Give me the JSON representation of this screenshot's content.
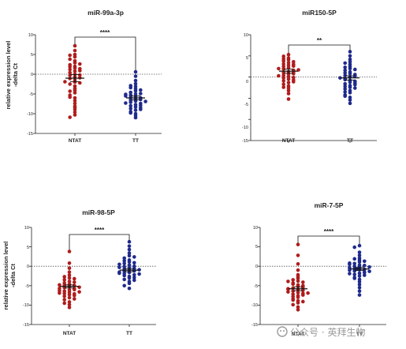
{
  "colors": {
    "ntat": "#b01c1c",
    "tt": "#1f2a8c",
    "axis": "#222222",
    "zero_line": "#555555"
  },
  "watermark": "公众号 · 英拜生物",
  "chart_data": [
    {
      "type": "scatter",
      "title": "miR-99a-3p",
      "ylabel_line1": "relative expression level",
      "ylabel_line2": "-delta Ct",
      "ylim": [
        -15,
        10
      ],
      "yticks": [
        "10",
        "5",
        "0",
        "-5",
        "-10",
        "-15"
      ],
      "categories": [
        "NTAT",
        "TT"
      ],
      "significance": "****",
      "series": [
        {
          "category": "NTAT",
          "mean": -1.0,
          "sem": 0.9,
          "values": [
            7.2,
            6.0,
            5.0,
            4.4,
            3.8,
            3.4,
            2.9,
            2.4,
            2.0,
            1.6,
            1.2,
            0.8,
            0.4,
            0.0,
            -0.3,
            -0.7,
            -1.1,
            -1.5,
            -2.0,
            -2.5,
            -3.0,
            -3.6,
            -4.1,
            -4.7,
            -5.3,
            -6.0,
            -6.7,
            -7.4,
            -8.1,
            -8.9,
            -9.6,
            -10.3,
            -10.9,
            1.9,
            0.9,
            -0.9,
            -2.2,
            -4.3,
            2.6,
            -1.9,
            4.8,
            -8.4,
            1.4,
            -0.2,
            -5.8
          ]
        },
        {
          "category": "TT",
          "mean": -6.0,
          "sem": 0.5,
          "values": [
            0.6,
            -0.5,
            -1.6,
            -2.4,
            -3.1,
            -3.7,
            -4.2,
            -4.6,
            -5.0,
            -5.3,
            -5.6,
            -5.9,
            -6.2,
            -6.5,
            -6.8,
            -7.1,
            -7.4,
            -7.7,
            -8.0,
            -8.3,
            -8.7,
            -9.1,
            -9.5,
            -10.0,
            -10.5,
            -11.0,
            -3.4,
            -4.9,
            -6.0,
            -7.3,
            -8.9,
            -2.9,
            -5.5,
            -6.9,
            -9.8,
            -4.0,
            -6.4,
            -7.9,
            -5.1,
            -8.5
          ]
        }
      ]
    },
    {
      "type": "scatter",
      "title": "miR150-5P",
      "ylim": [
        -15,
        10
      ],
      "yticks": [
        "10",
        "5",
        "0",
        "-5",
        "-10",
        "-15"
      ],
      "categories": [
        "NTAT",
        "TT"
      ],
      "significance": "**",
      "series": [
        {
          "category": "NTAT",
          "mean": 1.4,
          "sem": 0.5,
          "values": [
            5.3,
            4.9,
            4.5,
            4.1,
            3.8,
            3.4,
            3.1,
            2.8,
            2.5,
            2.2,
            1.9,
            1.6,
            1.3,
            1.0,
            0.7,
            0.4,
            0.1,
            -0.2,
            -0.5,
            -0.9,
            -1.3,
            -1.7,
            -2.1,
            -2.6,
            -3.2,
            -3.9,
            -5.2,
            2.0,
            0.8,
            -0.7,
            3.6,
            1.7,
            -1.1,
            4.3,
            2.6,
            0.3,
            -2.4,
            1.1,
            3.0,
            -0.1
          ]
        },
        {
          "category": "TT",
          "mean": -0.2,
          "sem": 0.5,
          "values": [
            6.0,
            5.0,
            4.2,
            3.6,
            3.0,
            2.5,
            2.0,
            1.6,
            1.2,
            0.8,
            0.4,
            0.0,
            -0.4,
            -0.8,
            -1.2,
            -1.6,
            -2.0,
            -2.4,
            -2.8,
            -3.2,
            -3.7,
            -4.2,
            -4.8,
            -5.4,
            -6.2,
            1.0,
            -0.6,
            -2.2,
            2.3,
            -1.4,
            0.2,
            -3.5,
            1.8,
            -0.2,
            -4.5,
            3.3,
            -1.0,
            -2.6,
            0.6,
            -1.8
          ]
        }
      ]
    },
    {
      "type": "scatter",
      "title": "miR-98-5P",
      "ylabel_line1": "relative expression level",
      "ylabel_line2": "-delta Ct",
      "ylim": [
        -15,
        10
      ],
      "yticks": [
        "10",
        "5",
        "0",
        "-5",
        "-10",
        "-15"
      ],
      "categories": [
        "NTAT",
        "TT"
      ],
      "significance": "****",
      "series": [
        {
          "category": "NTAT",
          "mean": -5.2,
          "sem": 0.4,
          "values": [
            3.8,
            0.8,
            -0.5,
            -1.5,
            -2.3,
            -3.0,
            -3.5,
            -3.9,
            -4.3,
            -4.6,
            -4.9,
            -5.2,
            -5.5,
            -5.8,
            -6.1,
            -6.4,
            -6.7,
            -7.0,
            -7.3,
            -7.7,
            -8.1,
            -8.6,
            -9.2,
            -9.9,
            -10.6,
            -4.1,
            -5.0,
            -6.0,
            -7.1,
            -3.2,
            -5.7,
            -6.9,
            -8.4,
            -4.8,
            -6.3,
            -7.5,
            -2.7,
            -5.4,
            -9.5,
            -6.6
          ]
        },
        {
          "category": "TT",
          "mean": -1.0,
          "sem": 0.4,
          "values": [
            6.3,
            5.2,
            4.3,
            3.4,
            2.7,
            2.1,
            1.6,
            1.1,
            0.7,
            0.3,
            -0.1,
            -0.4,
            -0.7,
            -1.0,
            -1.3,
            -1.6,
            -1.9,
            -2.2,
            -2.6,
            -3.0,
            -3.4,
            -3.9,
            -4.4,
            -5.0,
            -5.7,
            0.0,
            -1.2,
            -2.4,
            1.4,
            -0.6,
            -1.8,
            0.9,
            -2.9,
            -0.3,
            -1.5,
            2.4,
            -3.6,
            -0.9,
            -2.0,
            0.5
          ]
        }
      ]
    },
    {
      "type": "scatter",
      "title": "miR-7-5P",
      "ylim": [
        -15,
        10
      ],
      "yticks": [
        "10",
        "5",
        "0",
        "-5",
        "-10",
        "-15"
      ],
      "categories": [
        "NTAT",
        "TT"
      ],
      "significance": "****",
      "series": [
        {
          "category": "NTAT",
          "mean": -5.8,
          "sem": 0.5,
          "values": [
            5.6,
            2.8,
            0.6,
            -1.0,
            -2.2,
            -3.1,
            -3.8,
            -4.3,
            -4.8,
            -5.2,
            -5.6,
            -6.0,
            -6.4,
            -6.8,
            -7.2,
            -7.6,
            -8.0,
            -8.4,
            -8.9,
            -9.4,
            -9.9,
            -10.5,
            -11.2,
            -3.5,
            -4.6,
            -5.4,
            -6.2,
            -7.0,
            -7.8,
            -2.7,
            -5.0,
            -6.6,
            -8.7,
            -4.1,
            -5.8,
            -9.1,
            -6.9,
            -3.9,
            -7.4,
            -5.9
          ]
        },
        {
          "category": "TT",
          "mean": -0.7,
          "sem": 0.4,
          "values": [
            5.3,
            4.9,
            3.6,
            2.8,
            2.1,
            1.6,
            1.1,
            0.7,
            0.3,
            0.0,
            -0.3,
            -0.6,
            -0.9,
            -1.2,
            -1.5,
            -1.8,
            -2.1,
            -2.5,
            -2.9,
            -3.4,
            -4.0,
            -4.7,
            -5.5,
            -6.4,
            -7.4,
            0.2,
            -0.8,
            -1.6,
            1.3,
            -0.4,
            -1.0,
            0.5,
            -2.3,
            -0.2,
            -1.3,
            1.9,
            -3.1,
            -0.7,
            -1.9,
            0.8
          ]
        }
      ]
    }
  ]
}
